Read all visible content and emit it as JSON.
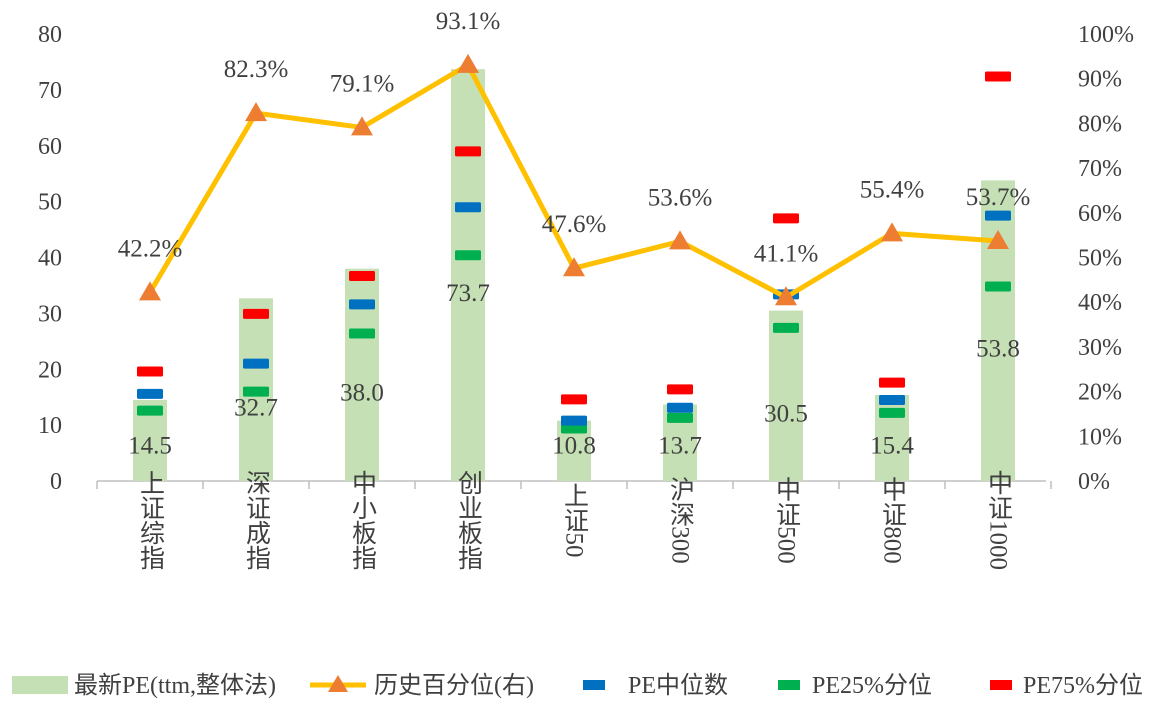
{
  "chart_data": {
    "type": "bar",
    "categories": [
      "上证综指",
      "深证成指",
      "中小板指",
      "创业板指",
      "上证50",
      "沪深300",
      "中证500",
      "中证800",
      "中证1000"
    ],
    "series": [
      {
        "name": "最新PE(ttm,整体法)",
        "kind": "bar",
        "axis": "left",
        "values": [
          14.5,
          32.7,
          38.0,
          73.7,
          10.8,
          13.7,
          30.5,
          15.4,
          53.8
        ],
        "labels": [
          "14.5",
          "32.7",
          "38.0",
          "73.7",
          "10.8",
          "13.7",
          "30.5",
          "15.4",
          "53.8"
        ]
      },
      {
        "name": "历史百分位(右)",
        "kind": "line",
        "axis": "right",
        "values": [
          42.2,
          82.3,
          79.1,
          93.1,
          47.6,
          53.6,
          41.1,
          55.4,
          53.7
        ],
        "labels": [
          "42.2%",
          "82.3%",
          "79.1%",
          "93.1%",
          "47.6%",
          "53.6%",
          "41.1%",
          "55.4%",
          "53.7%"
        ]
      },
      {
        "name": "PE中位数",
        "kind": "dash",
        "axis": "left",
        "values": [
          15.6,
          21.0,
          31.6,
          49.0,
          10.8,
          13.1,
          33.4,
          14.5,
          47.5
        ]
      },
      {
        "name": "PE25%分位",
        "kind": "dash",
        "axis": "left",
        "values": [
          12.6,
          16.0,
          26.4,
          40.4,
          9.4,
          11.3,
          27.4,
          12.2,
          34.8
        ]
      },
      {
        "name": "PE75%分位",
        "kind": "dash",
        "axis": "left",
        "values": [
          19.6,
          29.9,
          36.7,
          59.0,
          14.6,
          16.4,
          47.0,
          17.6,
          72.4
        ]
      }
    ],
    "y_left": {
      "min": 0,
      "max": 80,
      "ticks": [
        "0",
        "10",
        "20",
        "30",
        "40",
        "50",
        "60",
        "70",
        "80"
      ]
    },
    "y_right": {
      "min": 0,
      "max": 100,
      "ticks": [
        "0%",
        "10%",
        "20%",
        "30%",
        "40%",
        "50%",
        "60%",
        "70%",
        "80%",
        "90%",
        "100%"
      ]
    },
    "colors": {
      "bar": "#c5e0b4",
      "line": "#ffc000",
      "marker": "#ed7d31",
      "median": "#0070c0",
      "p25": "#00b050",
      "p75": "#ff0000",
      "text": "#404040",
      "axis": "#bfbfbf"
    }
  }
}
